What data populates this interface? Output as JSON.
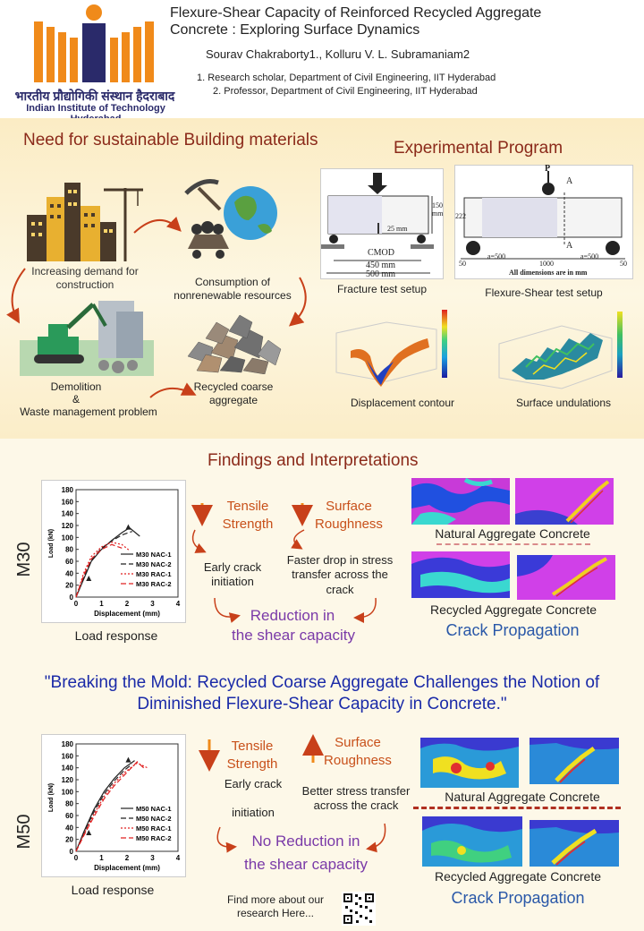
{
  "header": {
    "title_line1": "Flexure-Shear Capacity of Reinforced Recycled Aggregate",
    "title_line2": "Concrete : Exploring Surface Dynamics",
    "authors": "Sourav Chakraborty1., Kolluru V. L. Subramaniam2",
    "affil1": "1. Research scholar, Department of Civil Engineering, IIT Hyderabad",
    "affil2": "2. Professor, Department of Civil Engineering, IIT Hyderabad",
    "logo_hindi": "भारतीय प्रौद्योगिकी संस्थान हैदराबाद",
    "logo_english": "Indian Institute of Technology Hyderabad"
  },
  "need": {
    "title": "Need for sustainable Building materials",
    "demand": "Increasing demand for construction",
    "consumption": "Consumption of nonrenewable resources",
    "demolition_l1": "Demolition",
    "demolition_l2": "&",
    "demolition_l3": "Waste management problem",
    "recycled": "Recycled coarse aggregate"
  },
  "experimental": {
    "title": "Experimental Program",
    "fracture_caption": "Fracture test setup",
    "flexure_caption": "Flexure-Shear test setup",
    "displacement_caption": "Displacement contour",
    "surface_caption": "Surface undulations",
    "fracture_labels": {
      "cmod": "CMOD",
      "d450": "450 mm",
      "d500": "500 mm",
      "d150": "150 mm",
      "d25": "25 mm"
    },
    "flexure_labels": {
      "p": "P",
      "a": "A",
      "d222": "222",
      "a500l": "a=500",
      "a500r": "a=500",
      "d1000": "1000",
      "d50l": "50",
      "d50r": "50",
      "note": "All dimensions are in mm"
    }
  },
  "findings": {
    "title": "Findings and Interpretations",
    "m30": {
      "label": "M30",
      "chart_caption": "Load response",
      "tensile": "Tensile Strength",
      "roughness": "Surface Roughness",
      "early": "Early crack initiation",
      "faster": "Faster drop in stress transfer across the crack",
      "reduction_l1": "Reduction in",
      "reduction_l2": "the shear capacity",
      "nac": "Natural Aggregate Concrete",
      "rac": "Recycled Aggregate Concrete",
      "crack": "Crack Propagation"
    },
    "quote_l1": "\"Breaking the Mold: Recycled Coarse Aggregate Challenges the Notion of",
    "quote_l2": "Diminished Flexure-Shear Capacity in Concrete.\"",
    "m50": {
      "label": "M50",
      "chart_caption": "Load response",
      "tensile": "Tensile Strength",
      "roughness": "Surface Roughness",
      "early_l1": "Early crack",
      "early_l2": "initiation",
      "better": "Better stress transfer across the crack",
      "noreduction_l1": "No Reduction in",
      "noreduction_l2": "the shear capacity",
      "nac": "Natural Aggregate Concrete",
      "rac": "Recycled Aggregate Concrete",
      "crack": "Crack Propagation"
    },
    "find_more": "Find more about our research Here..."
  },
  "chart_data": [
    {
      "type": "line",
      "xlabel": "Displacement (mm)",
      "ylabel": "Load (kN)",
      "xlim": [
        0,
        4
      ],
      "ylim": [
        0,
        180
      ],
      "xticks": [
        "0",
        "1",
        "2",
        "3",
        "4"
      ],
      "yticks": [
        "0",
        "20",
        "40",
        "60",
        "80",
        "100",
        "120",
        "140",
        "160",
        "180"
      ],
      "series": [
        {
          "name": "M30 NAC-1",
          "color": "#222222",
          "dash": "",
          "x": [
            0,
            0.3,
            0.6,
            1.0,
            1.4,
            1.8,
            2.1,
            2.5
          ],
          "y": [
            0,
            30,
            60,
            80,
            95,
            108,
            116,
            102
          ]
        },
        {
          "name": "M30 NAC-2",
          "color": "#222222",
          "dash": "6,3",
          "x": [
            0,
            0.3,
            0.6,
            1.0,
            1.4,
            1.8,
            2.2
          ],
          "y": [
            0,
            33,
            62,
            82,
            94,
            104,
            110
          ]
        },
        {
          "name": "M30 RAC-1",
          "color": "#e02020",
          "dash": "2,2",
          "x": [
            0,
            0.3,
            0.6,
            1.0,
            1.4,
            1.8,
            2.1
          ],
          "y": [
            0,
            40,
            68,
            84,
            92,
            88,
            78
          ]
        },
        {
          "name": "M30 RAC-2",
          "color": "#e02020",
          "dash": "6,3",
          "x": [
            0,
            0.3,
            0.6,
            1.0,
            1.4,
            1.8
          ],
          "y": [
            0,
            36,
            64,
            80,
            88,
            82
          ]
        }
      ]
    },
    {
      "type": "line",
      "xlabel": "Displacement (mm)",
      "ylabel": "Load (kN)",
      "xlim": [
        0,
        4
      ],
      "ylim": [
        0,
        180
      ],
      "xticks": [
        "0",
        "1",
        "2",
        "3",
        "4"
      ],
      "yticks": [
        "0",
        "20",
        "40",
        "60",
        "80",
        "100",
        "120",
        "140",
        "160",
        "180"
      ],
      "series": [
        {
          "name": "M50 NAC-1",
          "color": "#222222",
          "dash": "",
          "x": [
            0,
            0.3,
            0.7,
            1.1,
            1.5,
            1.9,
            2.3
          ],
          "y": [
            0,
            32,
            70,
            100,
            122,
            140,
            152
          ]
        },
        {
          "name": "M50 NAC-2",
          "color": "#222222",
          "dash": "6,3",
          "x": [
            0,
            0.3,
            0.7,
            1.1,
            1.5,
            1.9,
            2.2
          ],
          "y": [
            0,
            30,
            66,
            96,
            118,
            136,
            146
          ]
        },
        {
          "name": "M50 RAC-1",
          "color": "#e02020",
          "dash": "2,2",
          "x": [
            0,
            0.3,
            0.7,
            1.1,
            1.5,
            1.9,
            2.4,
            2.8
          ],
          "y": [
            0,
            28,
            62,
            92,
            114,
            132,
            148,
            140
          ]
        },
        {
          "name": "M50 RAC-2",
          "color": "#e02020",
          "dash": "6,3",
          "x": [
            0,
            0.3,
            0.7,
            1.1,
            1.5,
            1.9,
            2.4,
            2.7
          ],
          "y": [
            0,
            26,
            58,
            88,
            110,
            128,
            150,
            138
          ]
        }
      ]
    }
  ]
}
